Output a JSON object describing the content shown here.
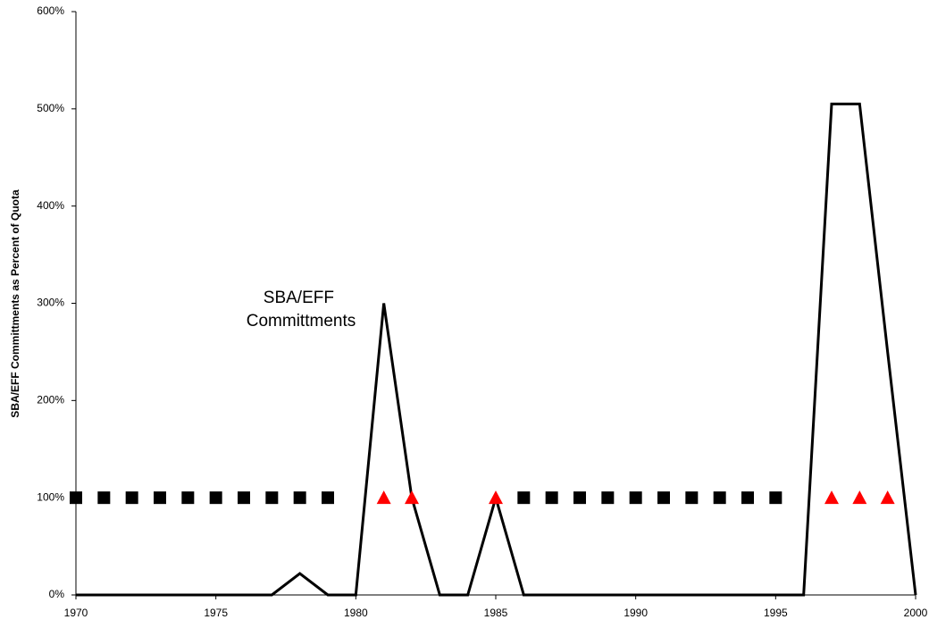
{
  "chart_data": {
    "type": "line",
    "y_label": "SBA/EFF Committments as Percent of Quota",
    "annotation": [
      "SBA/EFF",
      "Committments"
    ],
    "x": [
      1970,
      1971,
      1972,
      1973,
      1974,
      1975,
      1976,
      1977,
      1978,
      1979,
      1980,
      1981,
      1982,
      1983,
      1984,
      1985,
      1986,
      1987,
      1988,
      1989,
      1990,
      1991,
      1992,
      1993,
      1994,
      1995,
      1996,
      1997,
      1998,
      1999,
      2000
    ],
    "series": [
      {
        "style": "line",
        "color": "#000000",
        "values": [
          0,
          0,
          0,
          0,
          0,
          0,
          0,
          0,
          22,
          0,
          0,
          300,
          100,
          0,
          0,
          100,
          0,
          0,
          0,
          0,
          0,
          0,
          0,
          0,
          0,
          0,
          0,
          505,
          505,
          250,
          0
        ]
      },
      {
        "style": "square",
        "color": "#000000",
        "values": [
          100,
          100,
          100,
          100,
          100,
          100,
          100,
          100,
          100,
          100,
          null,
          null,
          null,
          null,
          null,
          null,
          100,
          100,
          100,
          100,
          100,
          100,
          100,
          100,
          100,
          100,
          null,
          null,
          null,
          null,
          null
        ]
      },
      {
        "style": "triangle",
        "color": "#ff0000",
        "values": [
          null,
          null,
          null,
          null,
          null,
          null,
          null,
          null,
          null,
          null,
          null,
          100,
          100,
          null,
          null,
          100,
          null,
          null,
          null,
          null,
          null,
          null,
          null,
          null,
          null,
          null,
          null,
          100,
          100,
          100,
          null
        ]
      }
    ],
    "xlim": [
      1970,
      2000
    ],
    "xticks": [
      1970,
      1975,
      1980,
      1985,
      1990,
      1995,
      2000
    ],
    "ylim": [
      0,
      600
    ],
    "yticks": [
      {
        "value": 0,
        "label": "0%"
      },
      {
        "value": 100,
        "label": "100%"
      },
      {
        "value": 200,
        "label": "200%"
      },
      {
        "value": 300,
        "label": "300%"
      },
      {
        "value": 400,
        "label": "400%"
      },
      {
        "value": 500,
        "label": "500%"
      },
      {
        "value": 600,
        "label": "600%"
      }
    ],
    "grid": false
  }
}
